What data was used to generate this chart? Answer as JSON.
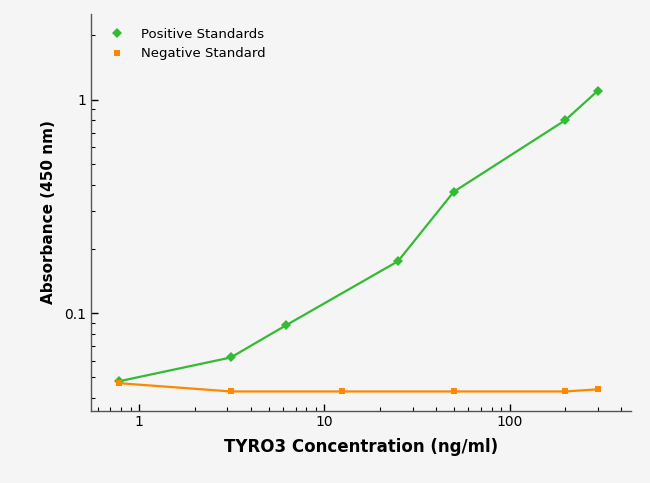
{
  "positive_x": [
    0.78,
    3.125,
    6.25,
    25,
    50,
    200,
    300
  ],
  "positive_y": [
    0.048,
    0.062,
    0.088,
    0.175,
    0.37,
    0.8,
    1.1
  ],
  "negative_x": [
    0.78,
    3.125,
    12.5,
    50,
    200,
    300
  ],
  "negative_y": [
    0.047,
    0.043,
    0.043,
    0.043,
    0.043,
    0.044
  ],
  "positive_color": "#33bb33",
  "negative_color": "#ff8800",
  "positive_label": "Positive Standards",
  "negative_label": "Negative Standard",
  "xlabel": "TYRO3 Concentration (ng/ml)",
  "ylabel": "Absorbance (450 nm)",
  "xlim": [
    0.55,
    450
  ],
  "ylim": [
    0.035,
    2.5
  ],
  "background_color": "#f5f5f5",
  "marker_size": 5,
  "linewidth": 1.6
}
